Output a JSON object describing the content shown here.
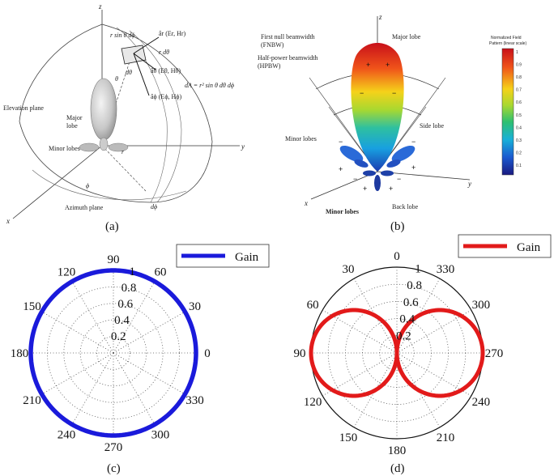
{
  "panel_a": {
    "caption": "(a)",
    "labels": {
      "z": "z",
      "y": "y",
      "x": "x",
      "r_sin_dphi": "r sin θ dϕ",
      "r_dtheta": "r dθ",
      "ar": "âr (Er, Hr)",
      "atheta": "âθ (Eθ, Hθ)",
      "aphi": "âϕ (Eϕ, Hϕ)",
      "dA": "dA = r² sin θ dθ dϕ",
      "elevation": "Elevation plane",
      "major_lobe_1": "Major",
      "major_lobe_2": "lobe",
      "minor_lobes": "Minor lobes",
      "azimuth": "Azimuth plane",
      "phi": "ϕ",
      "dphi": "dϕ",
      "theta": "θ",
      "dtheta": "dθ",
      "r": "r"
    }
  },
  "panel_b": {
    "caption": "(b)",
    "labels": {
      "z": "z",
      "y": "y",
      "x": "x",
      "fnbw_1": "First null beamwidth",
      "fnbw_2": "(FNBW)",
      "hpbw_1": "Half-power beamwidth",
      "hpbw_2": "(HPBW)",
      "major_lobe": "Major lobe",
      "side_lobe": "Side lobe",
      "minor_lobes": "Minor lobes",
      "minor_lobes_bottom": "Minor lobes",
      "back_lobe": "Back lobe"
    },
    "colorbar": {
      "title_1": "Normalized Field",
      "title_2": "Pattern (linear scale)",
      "ticks": [
        "1",
        "0.9",
        "0.8",
        "0.7",
        "0.6",
        "0.5",
        "0.4",
        "0.3",
        "0.2",
        "0.1"
      ]
    }
  },
  "panel_c": {
    "caption": "(c)",
    "legend": "Gain",
    "series_color": "#1a1adb",
    "angle_labels": [
      "0",
      "30",
      "60",
      "90",
      "120",
      "150",
      "180",
      "210",
      "240",
      "270",
      "300",
      "330"
    ],
    "radial_labels": [
      "0.2",
      "0.4",
      "0.6",
      "0.8",
      "1"
    ]
  },
  "panel_d": {
    "caption": "(d)",
    "legend": "Gain",
    "series_color": "#e21a1a",
    "angle_labels": [
      "0",
      "330",
      "300",
      "270",
      "240",
      "210",
      "180",
      "150",
      "120",
      "90",
      "60",
      "30"
    ],
    "radial_labels": [
      "0.2",
      "0.4",
      "0.6",
      "0.8",
      "1"
    ]
  },
  "chart_data": [
    {
      "type": "line",
      "polar": true,
      "series": [
        {
          "name": "Gain",
          "pattern": "isotropic",
          "r": 1.0
        }
      ],
      "theta_ticks": [
        0,
        30,
        60,
        90,
        120,
        150,
        180,
        210,
        240,
        270,
        300,
        330
      ],
      "r_ticks": [
        0.2,
        0.4,
        0.6,
        0.8,
        1
      ],
      "rlim": [
        0,
        1
      ],
      "grid": true,
      "legend": "top-right"
    },
    {
      "type": "line",
      "polar": true,
      "series": [
        {
          "name": "Gain",
          "pattern": "figure-eight",
          "r_max": 1.0,
          "max_at_deg": [
            90,
            270
          ],
          "null_at_deg": [
            0,
            180
          ]
        }
      ],
      "theta_ticks": [
        0,
        330,
        300,
        270,
        240,
        210,
        180,
        150,
        120,
        90,
        60,
        30
      ],
      "r_ticks": [
        0.2,
        0.4,
        0.6,
        0.8,
        1
      ],
      "rlim": [
        0,
        1
      ],
      "grid": true,
      "legend": "top-right"
    }
  ]
}
